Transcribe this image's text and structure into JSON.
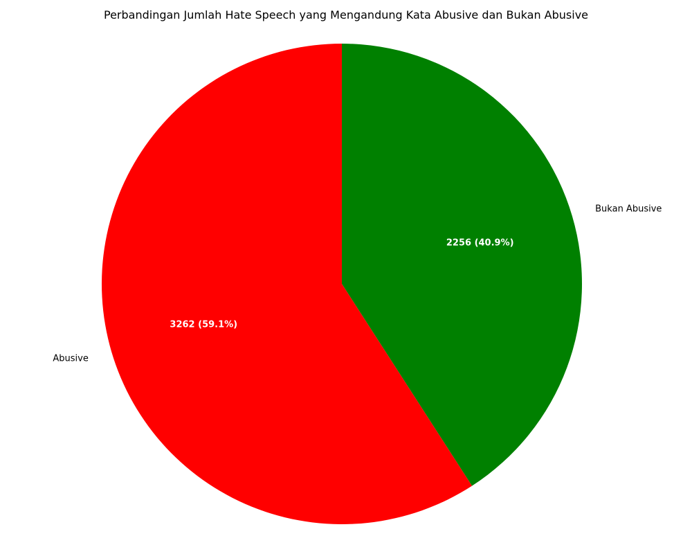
{
  "chart_data": {
    "type": "pie",
    "title": "Perbandingan Jumlah Hate Speech yang Mengandung Kata Abusive dan Bukan Abusive",
    "categories": [
      "Bukan Abusive",
      "Abusive"
    ],
    "values": [
      2256,
      3262
    ],
    "percent_labels": [
      "2256 (40.9%)",
      "3262 (59.1%)"
    ],
    "colors": [
      "#008000",
      "#ff0000"
    ],
    "start_angle": "top",
    "direction": "clockwise",
    "legend": "none"
  }
}
